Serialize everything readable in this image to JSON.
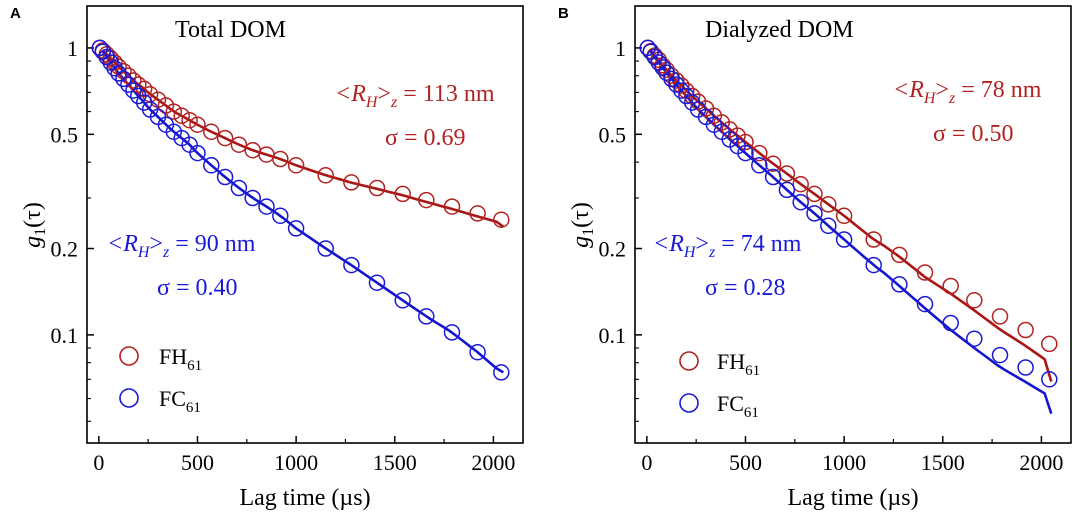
{
  "figure": {
    "panels": [
      "A",
      "B"
    ]
  },
  "colors": {
    "fh": "#b22222",
    "fc": "#1a1ad6",
    "fh_line": "#aa1515",
    "fc_line": "#1515cc"
  },
  "chart_data": [
    {
      "type": "scatter",
      "panel": "A",
      "title": "Total DOM",
      "xlabel": "Lag time (µs)",
      "ylabel": "g1(τ)",
      "ylabel_main": "g",
      "ylabel_sub": "1",
      "ylabel_tail": "(τ)",
      "xlim": [
        -60,
        2150
      ],
      "ylim": [
        0.042,
        1.4
      ],
      "yscale": "log",
      "xticks": [
        0,
        500,
        1000,
        1500,
        2000
      ],
      "xtick_labels": [
        "0",
        "500",
        "1000",
        "1500",
        "2000"
      ],
      "yticks": [
        0.1,
        0.2,
        0.5,
        1
      ],
      "ytick_labels": [
        "0.1",
        "0.2",
        "0.5",
        "1"
      ],
      "legend": [
        "FH61",
        "FC61"
      ],
      "legend_main": [
        "FH",
        "FC"
      ],
      "legend_sub": [
        "61",
        "61"
      ],
      "annotations": [
        {
          "series": "FH61",
          "rh_label": "<RH>z = 113 nm",
          "rh_main": "<R",
          "rh_sub1": "H",
          "rh_close": ">",
          "rh_sub2": "z",
          "rh_value": " = 113 nm",
          "sigma": "σ = 0.69"
        },
        {
          "series": "FC61",
          "rh_label": "<RH>z = 90 nm",
          "rh_main": "<R",
          "rh_sub1": "H",
          "rh_close": ">",
          "rh_sub2": "z",
          "rh_value": " = 90 nm",
          "sigma": "σ = 0.40"
        }
      ],
      "series": [
        {
          "name": "FH61",
          "color": "#b22222",
          "a": 0.24,
          "b": -0.00148,
          "c": 0.91,
          "fit_x": [
            20,
            2050
          ],
          "fit_y0": 0.98,
          "fit_y1": 0.245
        },
        {
          "name": "FC61",
          "color": "#1a1ad6",
          "a": 0.0,
          "b": -0.00127,
          "c": 1.0,
          "fit_x": [
            20,
            2050
          ],
          "fit_y0": 0.975,
          "fit_y1": 0.074
        }
      ],
      "points": {
        "FH61": [
          [
            5,
            1.0
          ],
          [
            20,
            0.98
          ],
          [
            40,
            0.95
          ],
          [
            60,
            0.92
          ],
          [
            80,
            0.89
          ],
          [
            100,
            0.86
          ],
          [
            125,
            0.83
          ],
          [
            150,
            0.8
          ],
          [
            175,
            0.77
          ],
          [
            200,
            0.745
          ],
          [
            230,
            0.72
          ],
          [
            260,
            0.69
          ],
          [
            300,
            0.66
          ],
          [
            340,
            0.63
          ],
          [
            380,
            0.6
          ],
          [
            420,
            0.58
          ],
          [
            460,
            0.56
          ],
          [
            500,
            0.54
          ],
          [
            570,
            0.51
          ],
          [
            640,
            0.485
          ],
          [
            710,
            0.46
          ],
          [
            780,
            0.44
          ],
          [
            850,
            0.425
          ],
          [
            920,
            0.41
          ],
          [
            1000,
            0.39
          ],
          [
            1150,
            0.36
          ],
          [
            1280,
            0.34
          ],
          [
            1410,
            0.325
          ],
          [
            1540,
            0.31
          ],
          [
            1660,
            0.295
          ],
          [
            1790,
            0.28
          ],
          [
            1920,
            0.265
          ],
          [
            2040,
            0.252
          ]
        ],
        "FC61": [
          [
            5,
            1.0
          ],
          [
            20,
            0.97
          ],
          [
            40,
            0.93
          ],
          [
            60,
            0.89
          ],
          [
            80,
            0.85
          ],
          [
            100,
            0.815
          ],
          [
            125,
            0.78
          ],
          [
            150,
            0.745
          ],
          [
            175,
            0.71
          ],
          [
            200,
            0.68
          ],
          [
            230,
            0.645
          ],
          [
            260,
            0.61
          ],
          [
            300,
            0.575
          ],
          [
            340,
            0.54
          ],
          [
            380,
            0.51
          ],
          [
            420,
            0.485
          ],
          [
            460,
            0.46
          ],
          [
            500,
            0.43
          ],
          [
            570,
            0.39
          ],
          [
            640,
            0.355
          ],
          [
            710,
            0.325
          ],
          [
            780,
            0.3
          ],
          [
            850,
            0.28
          ],
          [
            920,
            0.26
          ],
          [
            1000,
            0.235
          ],
          [
            1150,
            0.2
          ],
          [
            1280,
            0.175
          ],
          [
            1410,
            0.152
          ],
          [
            1540,
            0.132
          ],
          [
            1660,
            0.116
          ],
          [
            1790,
            0.102
          ],
          [
            1920,
            0.087
          ],
          [
            2040,
            0.074
          ]
        ]
      }
    },
    {
      "type": "scatter",
      "panel": "B",
      "title": "Dialyzed DOM",
      "xlabel": "Lag time (µs)",
      "ylabel": "g1(τ)",
      "ylabel_main": "g",
      "ylabel_sub": "1",
      "ylabel_tail": "(τ)",
      "xlim": [
        -60,
        2150
      ],
      "ylim": [
        0.042,
        1.4
      ],
      "yscale": "log",
      "xticks": [
        0,
        500,
        1000,
        1500,
        2000
      ],
      "xtick_labels": [
        "0",
        "500",
        "1000",
        "1500",
        "2000"
      ],
      "yticks": [
        0.1,
        0.2,
        0.5,
        1
      ],
      "ytick_labels": [
        "0.1",
        "0.2",
        "0.5",
        "1"
      ],
      "legend": [
        "FH61",
        "FC61"
      ],
      "legend_main": [
        "FH",
        "FC"
      ],
      "legend_sub": [
        "61",
        "61"
      ],
      "annotations": [
        {
          "series": "FH61",
          "rh_label": "<RH>z = 78 nm",
          "rh_main": "<R",
          "rh_sub1": "H",
          "rh_close": ">",
          "rh_sub2": "z",
          "rh_value": " = 78 nm",
          "sigma": "σ = 0.50"
        },
        {
          "series": "FC61",
          "rh_label": "<RH>z = 74 nm",
          "rh_main": "<R",
          "rh_sub1": "H",
          "rh_close": ">",
          "rh_sub2": "z",
          "rh_value": " = 74 nm",
          "sigma": "σ = 0.28"
        }
      ],
      "series": [
        {
          "name": "FH61",
          "color": "#b22222",
          "fit_x": [
            20,
            2050
          ],
          "fit_y0": 0.98,
          "fit_y1": 0.08
        },
        {
          "name": "FC61",
          "color": "#1a1ad6",
          "fit_x": [
            20,
            2050
          ],
          "fit_y0": 0.975,
          "fit_y1": 0.061
        }
      ],
      "points": {
        "FH61": [
          [
            5,
            1.0
          ],
          [
            20,
            0.975
          ],
          [
            40,
            0.94
          ],
          [
            60,
            0.91
          ],
          [
            80,
            0.87
          ],
          [
            100,
            0.84
          ],
          [
            125,
            0.8
          ],
          [
            150,
            0.77
          ],
          [
            175,
            0.74
          ],
          [
            200,
            0.71
          ],
          [
            230,
            0.68
          ],
          [
            260,
            0.65
          ],
          [
            300,
            0.615
          ],
          [
            340,
            0.58
          ],
          [
            380,
            0.55
          ],
          [
            420,
            0.52
          ],
          [
            460,
            0.495
          ],
          [
            500,
            0.47
          ],
          [
            570,
            0.43
          ],
          [
            640,
            0.395
          ],
          [
            710,
            0.365
          ],
          [
            780,
            0.335
          ],
          [
            850,
            0.31
          ],
          [
            920,
            0.285
          ],
          [
            1000,
            0.26
          ],
          [
            1150,
            0.215
          ],
          [
            1280,
            0.19
          ],
          [
            1410,
            0.165
          ],
          [
            1540,
            0.148
          ],
          [
            1660,
            0.132
          ],
          [
            1790,
            0.116
          ],
          [
            1920,
            0.104
          ],
          [
            2040,
            0.093
          ]
        ],
        "FC61": [
          [
            5,
            1.0
          ],
          [
            20,
            0.97
          ],
          [
            40,
            0.93
          ],
          [
            60,
            0.89
          ],
          [
            80,
            0.855
          ],
          [
            100,
            0.82
          ],
          [
            125,
            0.78
          ],
          [
            150,
            0.745
          ],
          [
            175,
            0.71
          ],
          [
            200,
            0.68
          ],
          [
            230,
            0.645
          ],
          [
            260,
            0.61
          ],
          [
            300,
            0.575
          ],
          [
            340,
            0.54
          ],
          [
            380,
            0.51
          ],
          [
            420,
            0.48
          ],
          [
            460,
            0.455
          ],
          [
            500,
            0.43
          ],
          [
            570,
            0.39
          ],
          [
            640,
            0.355
          ],
          [
            710,
            0.32
          ],
          [
            780,
            0.29
          ],
          [
            850,
            0.265
          ],
          [
            920,
            0.24
          ],
          [
            1000,
            0.215
          ],
          [
            1150,
            0.175
          ],
          [
            1280,
            0.15
          ],
          [
            1410,
            0.128
          ],
          [
            1540,
            0.11
          ],
          [
            1660,
            0.097
          ],
          [
            1790,
            0.085
          ],
          [
            1920,
            0.077
          ],
          [
            2040,
            0.07
          ]
        ]
      }
    }
  ]
}
